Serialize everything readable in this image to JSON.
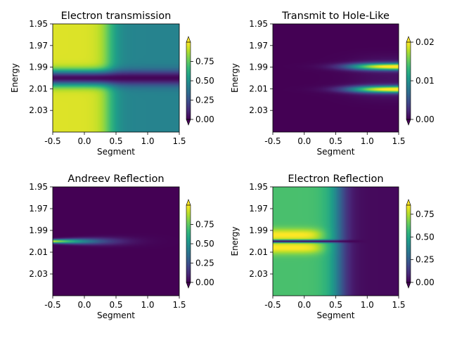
{
  "figure": {
    "colormap": [
      "#440154",
      "#482878",
      "#3e4989",
      "#31688e",
      "#26828e",
      "#1f9e89",
      "#35b779",
      "#6ece58",
      "#b5de2b",
      "#fde725"
    ],
    "axis_color": "#000000"
  },
  "chart_data": [
    {
      "type": "heatmap",
      "title": "Electron transmission",
      "xlabel": "Segment",
      "ylabel": "Energy",
      "xlim": [
        -0.5,
        1.5
      ],
      "ylim": [
        1.95,
        2.05
      ],
      "y_inverted": true,
      "xticks": [
        "-0.5",
        "0.0",
        "0.5",
        "1.0",
        "1.5"
      ],
      "yticks": [
        "1.95",
        "1.97",
        "1.99",
        "2.01",
        "2.03"
      ],
      "colorbar": {
        "min": 0.0,
        "max": 1.0,
        "ticks": [
          "0.00",
          "0.25",
          "0.50",
          "0.75"
        ],
        "extend": "both"
      },
      "field": {
        "kind": "transmission",
        "base": 0.95,
        "far": 0.45,
        "x_transition": 0.4,
        "x_width": 0.08,
        "dip_center": 2.0,
        "dip_width": 0.005,
        "dip_depth": 0.97
      }
    },
    {
      "type": "heatmap",
      "title": "Transmit to Hole-Like",
      "xlabel": "Segment",
      "ylabel": "Energy",
      "xlim": [
        -0.5,
        1.5
      ],
      "ylim": [
        1.95,
        2.05
      ],
      "y_inverted": true,
      "xticks": [
        "-0.5",
        "0.0",
        "0.5",
        "1.0",
        "1.5"
      ],
      "yticks": [
        "1.95",
        "1.97",
        "1.99",
        "2.01",
        "2.03"
      ],
      "colorbar": {
        "min": 0.0,
        "max": 0.02,
        "ticks": [
          "0.00",
          "0.01",
          "0.02"
        ],
        "extend": "both"
      },
      "field": {
        "kind": "hole",
        "peak": 0.021,
        "line_offset": 0.0105,
        "line_width": 0.0022,
        "x_onset": 0.85,
        "x_width": 0.18,
        "center": 2.0
      }
    },
    {
      "type": "heatmap",
      "title": "Andreev Reflection",
      "xlabel": "Segment",
      "ylabel": "",
      "xlim": [
        -0.5,
        1.5
      ],
      "ylim": [
        1.95,
        2.05
      ],
      "y_inverted": true,
      "xticks": [
        "-0.5",
        "0.0",
        "0.5",
        "1.0",
        "1.5"
      ],
      "yticks": [
        "1.95",
        "1.97",
        "1.99",
        "2.01",
        "2.03"
      ],
      "colorbar": {
        "min": 0.0,
        "max": 1.0,
        "ticks": [
          "0.00",
          "0.25",
          "0.50",
          "0.75"
        ],
        "extend": "both"
      },
      "field": {
        "kind": "andreev",
        "peak": 0.95,
        "center": 2.0,
        "line_width": 0.0012,
        "x_decay": 0.38,
        "x_start": -0.5
      }
    },
    {
      "type": "heatmap",
      "title": "Electron Reflection",
      "xlabel": "Segment",
      "ylabel": "Energy",
      "xlim": [
        -0.5,
        1.5
      ],
      "ylim": [
        1.95,
        2.05
      ],
      "y_inverted": true,
      "xticks": [
        "-0.5",
        "0.0",
        "0.5",
        "1.0",
        "1.5"
      ],
      "yticks": [
        "1.95",
        "1.97",
        "1.99",
        "2.01",
        "2.03"
      ],
      "colorbar": {
        "min": 0.0,
        "max": 0.85,
        "ticks": [
          "0.00",
          "0.25",
          "0.50",
          "0.75"
        ],
        "extend": "both"
      },
      "field": {
        "kind": "reflection",
        "base": 0.6,
        "bright": 0.85,
        "far": 0.02,
        "x_mid": 0.55,
        "x_width": 0.09,
        "band_center": 2.0,
        "band_offset": 0.006,
        "band_width": 0.004,
        "line_width": 0.0009
      }
    }
  ]
}
